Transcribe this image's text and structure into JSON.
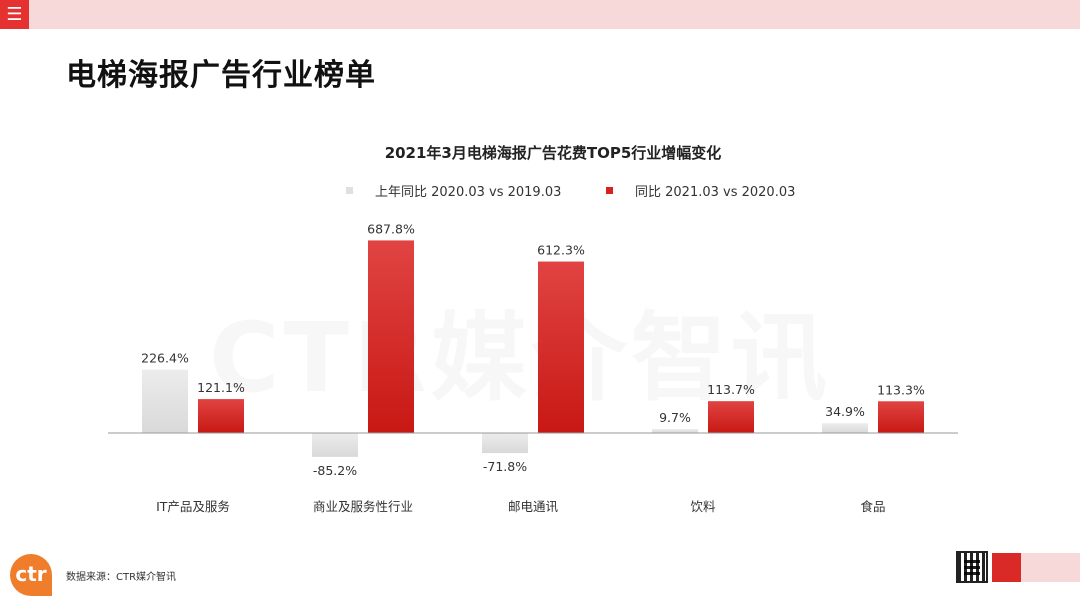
{
  "header": {
    "menu_icon": "menu-icon",
    "menu_glyph": "☰",
    "page_title": "电梯海报广告行业榜单"
  },
  "chart_data": {
    "type": "bar",
    "title": "2021年3月电梯海报广告花费TOP5行业增幅变化",
    "categories": [
      "IT产品及服务",
      "商业及服务性行业",
      "邮电通讯",
      "饮料",
      "食品"
    ],
    "series": [
      {
        "name": "上年同比 2020.03 vs 2019.03",
        "color": "#e6e6e6",
        "values": [
          226.4,
          -85.2,
          -71.8,
          9.7,
          34.9
        ],
        "labels": [
          "226.4%",
          "-85.2%",
          "-71.8%",
          "9.7%",
          "34.9%"
        ]
      },
      {
        "name": "同比 2021.03 vs 2020.03",
        "color": "#d9211f",
        "values": [
          121.1,
          687.8,
          612.3,
          113.7,
          113.3
        ],
        "labels": [
          "121.1%",
          "687.8%",
          "612.3%",
          "113.7%",
          "113.3%"
        ]
      }
    ],
    "legend_position": "top",
    "grid": false
  },
  "watermark": "CTR媒介智讯",
  "footer": {
    "logo_text": "ctr",
    "source": "数据来源：CTR媒介智讯"
  }
}
